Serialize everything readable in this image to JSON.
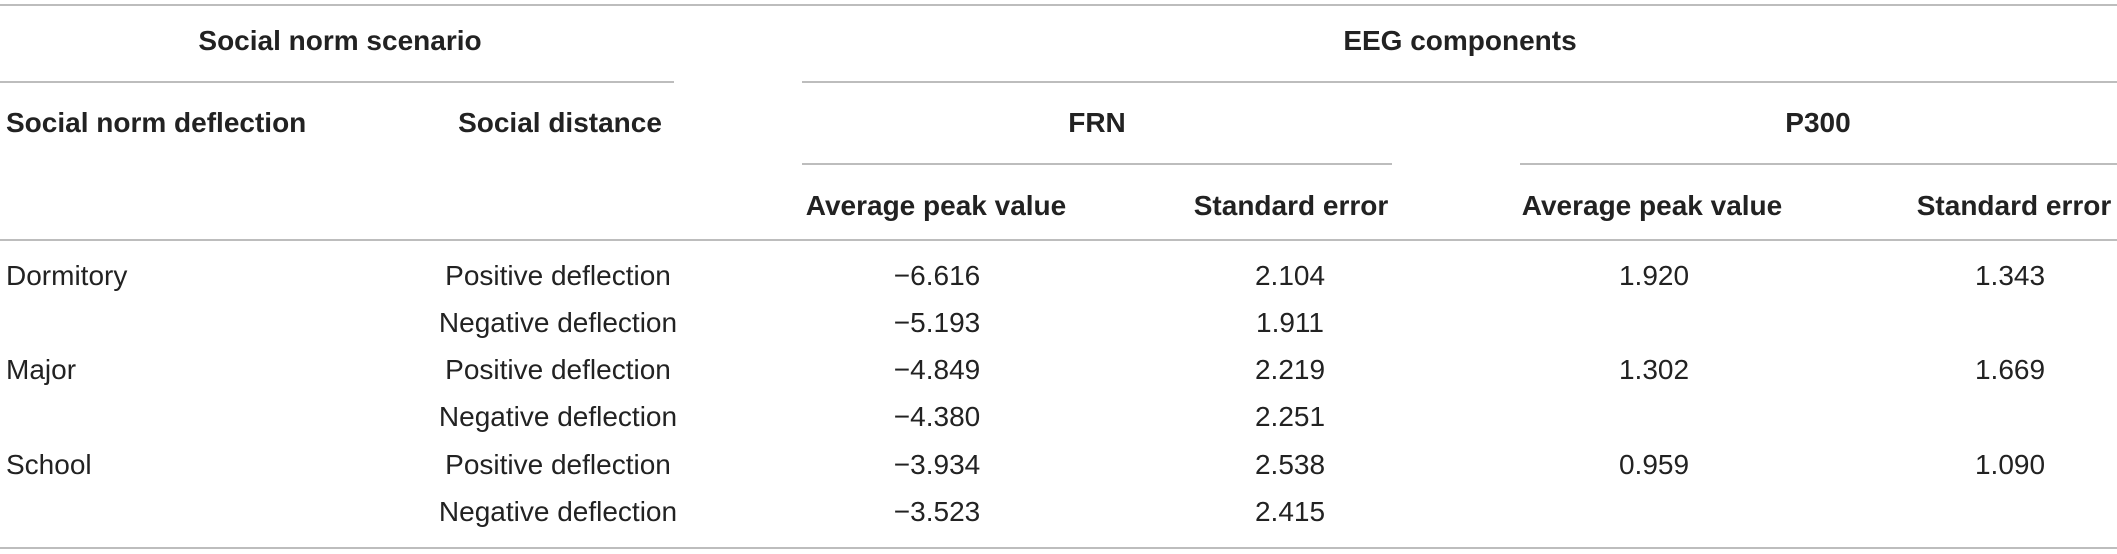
{
  "header": {
    "group_scenario": "Social norm scenario",
    "group_eeg": "EEG components",
    "col_deflection": "Social norm deflection",
    "col_distance": "Social distance",
    "frn": "FRN",
    "p300": "P300",
    "frn_avg": "Average peak value",
    "frn_se": "Standard error",
    "p300_avg": "Average peak value",
    "p300_se": "Standard error"
  },
  "rows": [
    {
      "scenario": "Dormitory",
      "distance": "Positive deflection",
      "frn_avg": "−6.616",
      "frn_se": "2.104",
      "p300_avg": "1.920",
      "p300_se": "1.343"
    },
    {
      "scenario": "",
      "distance": "Negative deflection",
      "frn_avg": "−5.193",
      "frn_se": "1.911",
      "p300_avg": "",
      "p300_se": ""
    },
    {
      "scenario": "Major",
      "distance": "Positive deflection",
      "frn_avg": "−4.849",
      "frn_se": "2.219",
      "p300_avg": "1.302",
      "p300_se": "1.669"
    },
    {
      "scenario": "",
      "distance": "Negative deflection",
      "frn_avg": "−4.380",
      "frn_se": "2.251",
      "p300_avg": "",
      "p300_se": ""
    },
    {
      "scenario": "School",
      "distance": "Positive deflection",
      "frn_avg": "−3.934",
      "frn_se": "2.538",
      "p300_avg": "0.959",
      "p300_se": "1.090"
    },
    {
      "scenario": "",
      "distance": "Negative deflection",
      "frn_avg": "−3.523",
      "frn_se": "2.415",
      "p300_avg": "",
      "p300_se": ""
    }
  ]
}
